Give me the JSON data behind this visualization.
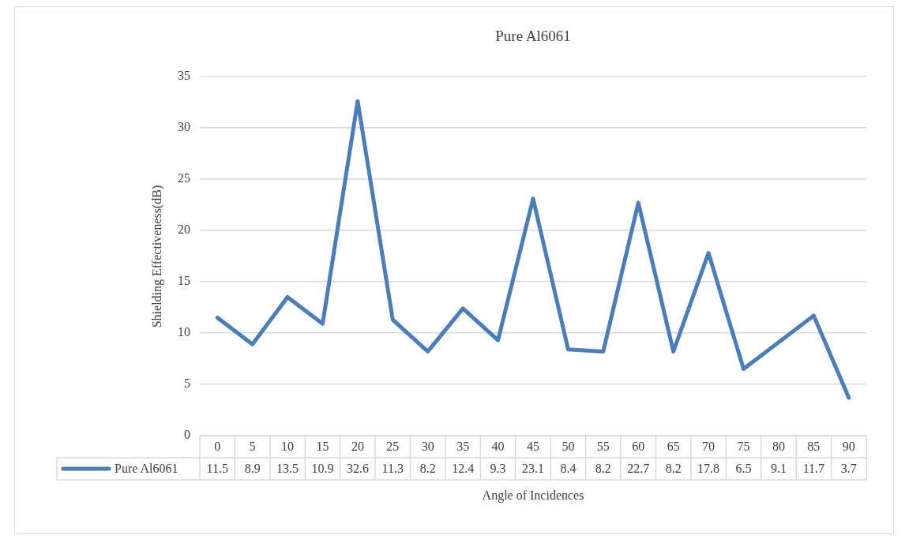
{
  "chart_data": {
    "type": "line",
    "title": "Pure Al6061",
    "xlabel": "Angle of Incidences",
    "ylabel": "Shielding Effectiveness(dB)",
    "categories": [
      "0",
      "5",
      "10",
      "15",
      "20",
      "25",
      "30",
      "35",
      "40",
      "45",
      "50",
      "55",
      "60",
      "65",
      "70",
      "75",
      "80",
      "85",
      "90"
    ],
    "series": [
      {
        "name": "Pure Al6061",
        "color": "#4a7ebb",
        "values": [
          11.5,
          8.9,
          13.5,
          10.9,
          32.6,
          11.3,
          8.2,
          12.4,
          9.3,
          23.1,
          8.4,
          8.2,
          22.7,
          8.2,
          17.8,
          6.5,
          9.1,
          11.7,
          3.7
        ]
      }
    ],
    "ylim": [
      0,
      35
    ],
    "yticks": [
      0,
      5,
      10,
      15,
      20,
      25,
      30,
      35
    ],
    "grid": "y",
    "legend": "bottom",
    "data_labels": true,
    "marker": "none",
    "line_style": "solid"
  }
}
